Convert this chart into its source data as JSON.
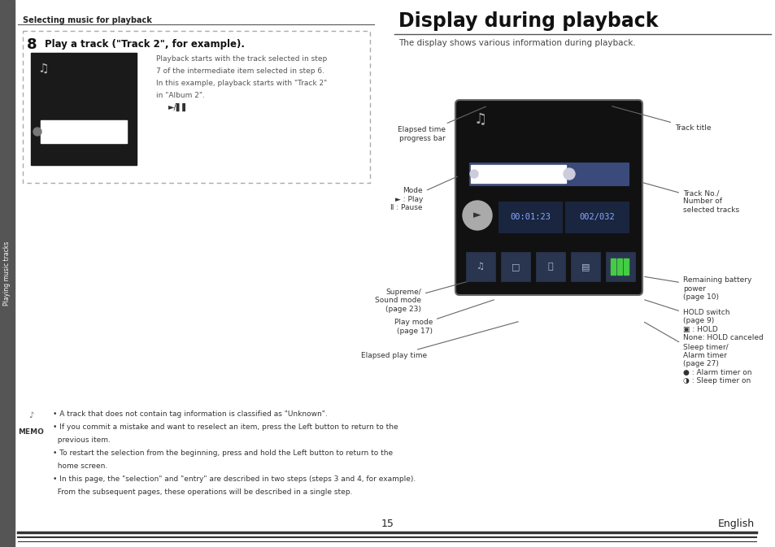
{
  "bg_color": "#ffffff",
  "sidebar_text": "Playing music tracks",
  "section_title_left": "Selecting music for playback",
  "step_number": "8",
  "step_title": "Play a track (\"Track 2\", for example).",
  "step_desc_lines": [
    "Playback starts with the track selected in step",
    "7 of the intermediate item selected in step 6.",
    "In this example, playback starts with \"Track 2\"",
    "in \"Album 2\"."
  ],
  "right_title": "Display during playback",
  "right_subtitle": "The display shows various information during playback.",
  "memo_text_lines": [
    "• A track that does not contain tag information is classified as \"Unknown\".",
    "• If you commit a mistake and want to reselect an item, press the Left button to return to the",
    "  previous item.",
    "• To restart the selection from the beginning, press and hold the Left button to return to the",
    "  home screen.",
    "• In this page, the \"selection\" and \"entry\" are described in two steps (steps 3 and 4, for example).",
    "  From the subsequent pages, these operations will be described in a single step."
  ],
  "page_number": "15",
  "page_lang": "English"
}
